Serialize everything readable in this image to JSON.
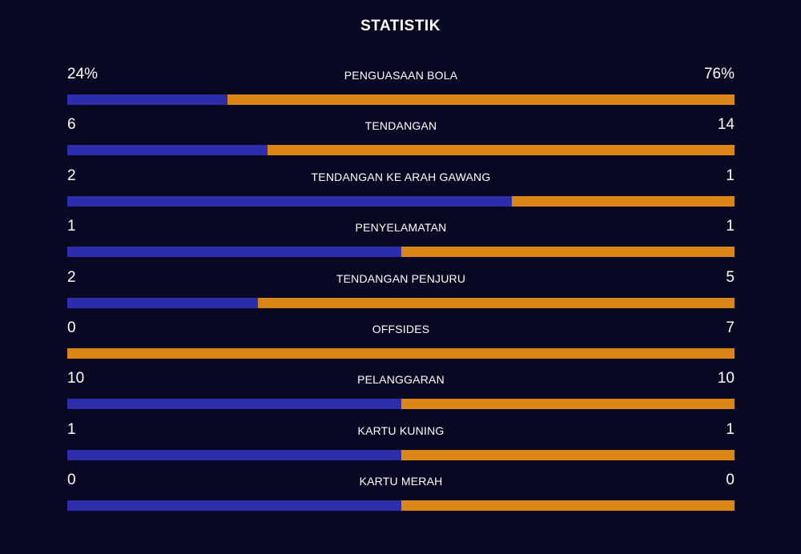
{
  "title": "STATISTIK",
  "colors": {
    "background": "#080823",
    "home": "#2b2dab",
    "away": "#d98616"
  },
  "stats": [
    {
      "label": "PENGUASAAN BOLA",
      "home": "24%",
      "away": "76%",
      "home_value": 24,
      "away_value": 76
    },
    {
      "label": "TENDANGAN",
      "home": "6",
      "away": "14",
      "home_value": 6,
      "away_value": 14
    },
    {
      "label": "TENDANGAN KE ARAH GAWANG",
      "home": "2",
      "away": "1",
      "home_value": 2,
      "away_value": 1
    },
    {
      "label": "PENYELAMATAN",
      "home": "1",
      "away": "1",
      "home_value": 1,
      "away_value": 1
    },
    {
      "label": "TENDANGAN PENJURU",
      "home": "2",
      "away": "5",
      "home_value": 2,
      "away_value": 5
    },
    {
      "label": "OFFSIDES",
      "home": "0",
      "away": "7",
      "home_value": 0,
      "away_value": 7
    },
    {
      "label": "PELANGGARAN",
      "home": "10",
      "away": "10",
      "home_value": 10,
      "away_value": 10
    },
    {
      "label": "KARTU KUNING",
      "home": "1",
      "away": "1",
      "home_value": 1,
      "away_value": 1
    },
    {
      "label": "KARTU MERAH",
      "home": "0",
      "away": "0",
      "home_value": 0,
      "away_value": 0
    }
  ]
}
